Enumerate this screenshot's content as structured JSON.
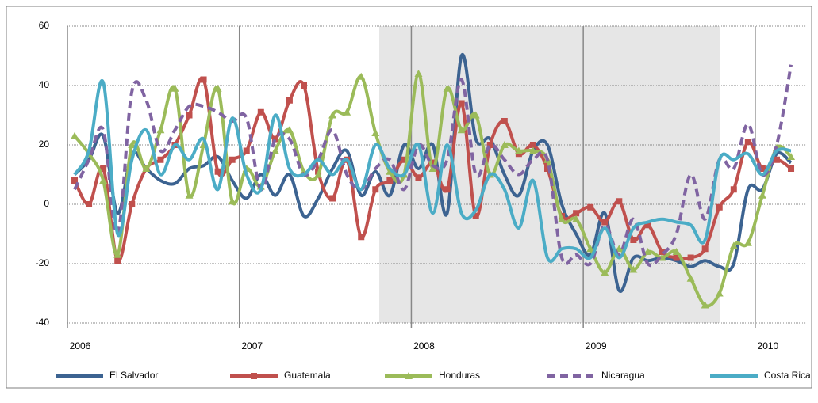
{
  "chart_data": {
    "type": "line",
    "categories": [
      "2006",
      null,
      null,
      null,
      null,
      null,
      null,
      null,
      null,
      null,
      null,
      null,
      "2007",
      null,
      null,
      null,
      null,
      null,
      null,
      null,
      null,
      null,
      null,
      null,
      "2008",
      null,
      null,
      null,
      null,
      null,
      null,
      null,
      null,
      null,
      null,
      null,
      "2009",
      null,
      null,
      null,
      null,
      null,
      null,
      null,
      null,
      null,
      null,
      null,
      "2010",
      null,
      null
    ],
    "ylim": [
      -40,
      60
    ],
    "yticks": [
      -40,
      -20,
      0,
      20,
      40,
      60
    ],
    "grid": true,
    "legend": "bottom",
    "series": [
      {
        "name": "El Salvador",
        "color": "#3c6391",
        "values": [
          10,
          15,
          23,
          -3,
          17,
          12,
          8,
          7,
          12,
          13,
          16,
          8,
          2,
          10,
          3,
          10,
          -4,
          2,
          12,
          18,
          3,
          11,
          3,
          20,
          12,
          20,
          -3,
          50,
          22,
          22,
          10,
          3,
          18,
          20,
          0,
          -10,
          -17,
          -3,
          -29,
          -18,
          -19,
          -18,
          -19,
          -21,
          -19,
          -21,
          -20,
          5,
          5,
          17,
          14
        ]
      },
      {
        "name": "Guatemala",
        "color": "#c0504d",
        "marker": "square",
        "values": [
          8,
          0,
          12,
          -19,
          0,
          12,
          15,
          20,
          30,
          42,
          11,
          15,
          18,
          31,
          22,
          35,
          40,
          11,
          2,
          15,
          -11,
          5,
          8,
          15,
          9,
          14,
          5,
          34,
          -4,
          20,
          28,
          17,
          20,
          12,
          -4,
          -3,
          -1,
          -6,
          1,
          -12,
          -7,
          -16,
          -18,
          -18,
          -15,
          -1,
          5,
          21,
          12,
          15,
          12
        ]
      },
      {
        "name": "Honduras",
        "color": "#9bbb59",
        "marker": "triangle",
        "values": [
          23,
          17,
          8,
          -17,
          20,
          12,
          25,
          39,
          3,
          20,
          39,
          1,
          12,
          6,
          18,
          25,
          11,
          10,
          30,
          31,
          43,
          24,
          11,
          10,
          44,
          12,
          39,
          25,
          30,
          10,
          20,
          18,
          18,
          15,
          -5,
          -5,
          -15,
          -23,
          -15,
          -22,
          -16,
          -18,
          -16,
          -25,
          -34,
          -30,
          -14,
          -13,
          3,
          19,
          16
        ]
      },
      {
        "name": "Nicaragua",
        "color": "#8064a2",
        "dash": true,
        "values": [
          5,
          15,
          25,
          -10,
          38,
          35,
          18,
          25,
          33,
          33,
          31,
          28,
          29,
          5,
          22,
          22,
          10,
          15,
          25,
          10,
          5,
          12,
          15,
          5,
          20,
          13,
          15,
          42,
          10,
          20,
          15,
          10,
          15,
          15,
          -18,
          -17,
          -20,
          -7,
          -17,
          -5,
          -20,
          -17,
          -10,
          10,
          -5,
          15,
          12,
          27,
          10,
          20,
          47
        ]
      },
      {
        "name": "Costa Rica",
        "color": "#4bacc6",
        "values": [
          10,
          18,
          41,
          -10,
          15,
          25,
          10,
          20,
          15,
          22,
          5,
          29,
          10,
          5,
          30,
          12,
          10,
          15,
          10,
          15,
          5,
          20,
          12,
          10,
          20,
          -3,
          20,
          -3,
          -2,
          10,
          5,
          -8,
          8,
          -18,
          -15,
          -15,
          -18,
          -8,
          -18,
          -8,
          -6,
          -5,
          -6,
          -7,
          -12,
          15,
          15,
          17,
          10,
          18,
          18
        ]
      }
    ]
  }
}
